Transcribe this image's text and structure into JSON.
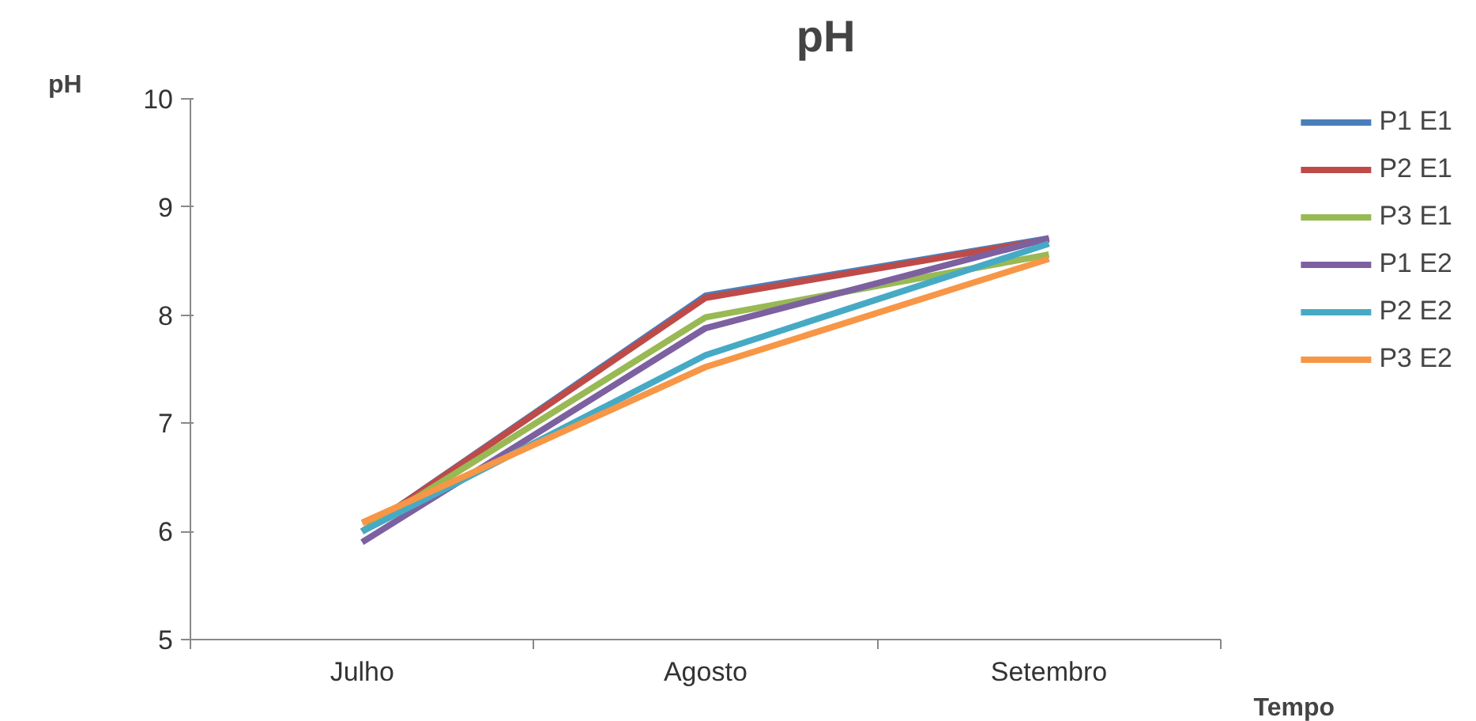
{
  "chart_data": {
    "type": "line",
    "title": "pH",
    "ylabel": "pH",
    "xlabel": "Tempo",
    "categories": [
      "Julho",
      "Agosto",
      "Setembro"
    ],
    "series": [
      {
        "name": "P1 E1",
        "color": "#4a7ebb",
        "values": [
          6.0,
          8.18,
          8.71
        ]
      },
      {
        "name": "P2 E1",
        "color": "#be4b48",
        "values": [
          6.0,
          8.16,
          8.7
        ]
      },
      {
        "name": "P3 E1",
        "color": "#98b954",
        "values": [
          6.0,
          7.98,
          8.56
        ]
      },
      {
        "name": "P1 E2",
        "color": "#7d60a0",
        "values": [
          5.9,
          7.88,
          8.71
        ]
      },
      {
        "name": "P2 E2",
        "color": "#46aac5",
        "values": [
          6.0,
          7.63,
          8.66
        ]
      },
      {
        "name": "P3 E2",
        "color": "#f79646",
        "values": [
          6.08,
          7.52,
          8.52
        ]
      }
    ],
    "ylim": [
      5,
      10
    ],
    "yticks": [
      5,
      6,
      7,
      8,
      9,
      10
    ],
    "grid": false,
    "legend": "right",
    "marker": "none",
    "line_style": "solid"
  }
}
